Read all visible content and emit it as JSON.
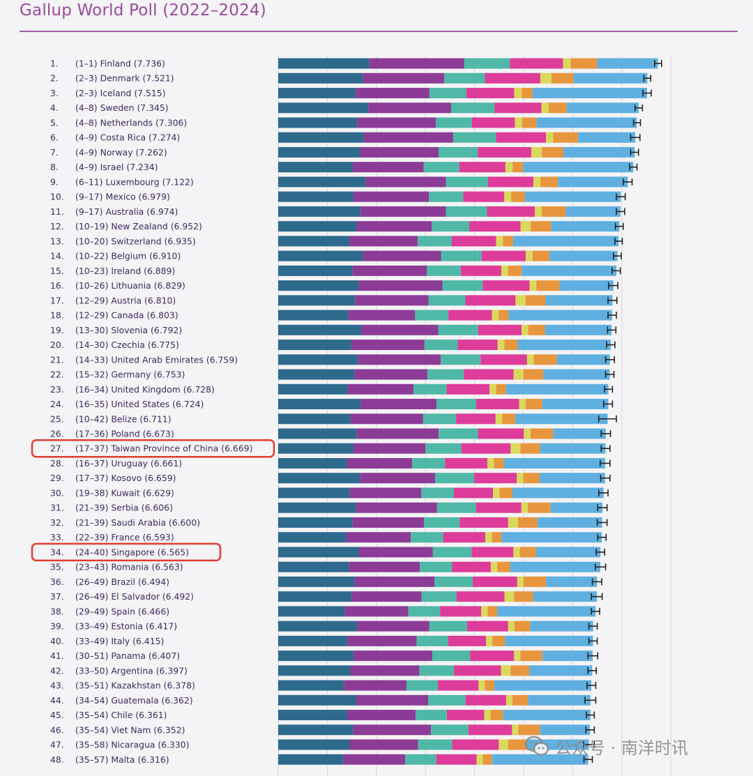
{
  "title": "Gallup World Poll (2022–2024)",
  "colors": {
    "segments": [
      "#2e6a8c",
      "#8c3c96",
      "#4fb8a6",
      "#de3c9a",
      "#d9d95c",
      "#e8963e",
      "#5fb0e0"
    ],
    "title": "#9a4a9c",
    "highlight": "#e03c30",
    "error_bar": "#222222"
  },
  "highlighted_ranks": [
    27,
    34
  ],
  "watermark": {
    "text": "公众号 · 南洋时讯",
    "icon": "wechat-icon"
  },
  "chart_data": {
    "type": "bar",
    "orientation": "horizontal",
    "stacked": true,
    "grid": true,
    "items": [
      {
        "rank": "1.",
        "range": "(1–1)",
        "country": "Finland",
        "score": "7.736",
        "value": 7.736,
        "lo": 7.67,
        "hi": 7.81
      },
      {
        "rank": "2.",
        "range": "(2–3)",
        "country": "Denmark",
        "score": "7.521",
        "value": 7.521,
        "lo": 7.45,
        "hi": 7.59
      },
      {
        "rank": "3.",
        "range": "(2–3)",
        "country": "Iceland",
        "score": "7.515",
        "value": 7.515,
        "lo": 7.43,
        "hi": 7.6
      },
      {
        "rank": "4.",
        "range": "(4–8)",
        "country": "Sweden",
        "score": "7.345",
        "value": 7.345,
        "lo": 7.27,
        "hi": 7.42
      },
      {
        "rank": "5.",
        "range": "(4–8)",
        "country": "Netherlands",
        "score": "7.306",
        "value": 7.306,
        "lo": 7.24,
        "hi": 7.38
      },
      {
        "rank": "6.",
        "range": "(4–9)",
        "country": "Costa Rica",
        "score": "7.274",
        "value": 7.274,
        "lo": 7.18,
        "hi": 7.37
      },
      {
        "rank": "7.",
        "range": "(4–9)",
        "country": "Norway",
        "score": "7.262",
        "value": 7.262,
        "lo": 7.18,
        "hi": 7.34
      },
      {
        "rank": "8.",
        "range": "(4–9)",
        "country": "Israel",
        "score": "7.234",
        "value": 7.234,
        "lo": 7.16,
        "hi": 7.31
      },
      {
        "rank": "9.",
        "range": "(6–11)",
        "country": "Luxembourg",
        "score": "7.122",
        "value": 7.122,
        "lo": 7.03,
        "hi": 7.21
      },
      {
        "rank": "10.",
        "range": "(9–17)",
        "country": "Mexico",
        "score": "6.979",
        "value": 6.979,
        "lo": 6.89,
        "hi": 7.07
      },
      {
        "rank": "11.",
        "range": "(9–17)",
        "country": "Australia",
        "score": "6.974",
        "value": 6.974,
        "lo": 6.89,
        "hi": 7.06
      },
      {
        "rank": "12.",
        "range": "(10–19)",
        "country": "New Zealand",
        "score": "6.952",
        "value": 6.952,
        "lo": 6.87,
        "hi": 7.03
      },
      {
        "rank": "13.",
        "range": "(10–20)",
        "country": "Switzerland",
        "score": "6.935",
        "value": 6.935,
        "lo": 6.86,
        "hi": 7.01
      },
      {
        "rank": "14.",
        "range": "(10–22)",
        "country": "Belgium",
        "score": "6.910",
        "value": 6.91,
        "lo": 6.83,
        "hi": 6.99
      },
      {
        "rank": "15.",
        "range": "(10–23)",
        "country": "Ireland",
        "score": "6.889",
        "value": 6.889,
        "lo": 6.8,
        "hi": 6.97
      },
      {
        "rank": "16.",
        "range": "(10–26)",
        "country": "Lithuania",
        "score": "6.829",
        "value": 6.829,
        "lo": 6.73,
        "hi": 6.92
      },
      {
        "rank": "17.",
        "range": "(12–29)",
        "country": "Austria",
        "score": "6.810",
        "value": 6.81,
        "lo": 6.72,
        "hi": 6.9
      },
      {
        "rank": "18.",
        "range": "(12–29)",
        "country": "Canada",
        "score": "6.803",
        "value": 6.803,
        "lo": 6.72,
        "hi": 6.89
      },
      {
        "rank": "19.",
        "range": "(13–30)",
        "country": "Slovenia",
        "score": "6.792",
        "value": 6.792,
        "lo": 6.71,
        "hi": 6.88
      },
      {
        "rank": "20.",
        "range": "(14–30)",
        "country": "Czechia",
        "score": "6.775",
        "value": 6.775,
        "lo": 6.69,
        "hi": 6.86
      },
      {
        "rank": "21.",
        "range": "(14–33)",
        "country": "United Arab Emirates",
        "score": "6.759",
        "value": 6.759,
        "lo": 6.67,
        "hi": 6.85
      },
      {
        "rank": "22.",
        "range": "(15–32)",
        "country": "Germany",
        "score": "6.753",
        "value": 6.753,
        "lo": 6.67,
        "hi": 6.84
      },
      {
        "rank": "23.",
        "range": "(16–34)",
        "country": "United Kingdom",
        "score": "6.728",
        "value": 6.728,
        "lo": 6.65,
        "hi": 6.81
      },
      {
        "rank": "24.",
        "range": "(16–35)",
        "country": "United States",
        "score": "6.724",
        "value": 6.724,
        "lo": 6.63,
        "hi": 6.81
      },
      {
        "rank": "25.",
        "range": "(10–42)",
        "country": "Belize",
        "score": "6.711",
        "value": 6.711,
        "lo": 6.53,
        "hi": 6.89
      },
      {
        "rank": "26.",
        "range": "(17–36)",
        "country": "Poland",
        "score": "6.673",
        "value": 6.673,
        "lo": 6.58,
        "hi": 6.77
      },
      {
        "rank": "27.",
        "range": "(17–37)",
        "country": "Taiwan Province of China",
        "score": "6.669",
        "value": 6.669,
        "lo": 6.58,
        "hi": 6.76
      },
      {
        "rank": "28.",
        "range": "(16–37)",
        "country": "Uruguay",
        "score": "6.661",
        "value": 6.661,
        "lo": 6.56,
        "hi": 6.76
      },
      {
        "rank": "29.",
        "range": "(17–37)",
        "country": "Kosovo",
        "score": "6.659",
        "value": 6.659,
        "lo": 6.57,
        "hi": 6.76
      },
      {
        "rank": "30.",
        "range": "(19–38)",
        "country": "Kuwait",
        "score": "6.629",
        "value": 6.629,
        "lo": 6.53,
        "hi": 6.72
      },
      {
        "rank": "31.",
        "range": "(21–39)",
        "country": "Serbia",
        "score": "6.606",
        "value": 6.606,
        "lo": 6.51,
        "hi": 6.7
      },
      {
        "rank": "32.",
        "range": "(21–39)",
        "country": "Saudi Arabia",
        "score": "6.600",
        "value": 6.6,
        "lo": 6.5,
        "hi": 6.7
      },
      {
        "rank": "33.",
        "range": "(22–39)",
        "country": "France",
        "score": "6.593",
        "value": 6.593,
        "lo": 6.51,
        "hi": 6.68
      },
      {
        "rank": "34.",
        "range": "(24–40)",
        "country": "Singapore",
        "score": "6.565",
        "value": 6.565,
        "lo": 6.48,
        "hi": 6.65
      },
      {
        "rank": "35.",
        "range": "(23–43)",
        "country": "Romania",
        "score": "6.563",
        "value": 6.563,
        "lo": 6.46,
        "hi": 6.67
      },
      {
        "rank": "36.",
        "range": "(26–49)",
        "country": "Brazil",
        "score": "6.494",
        "value": 6.494,
        "lo": 6.4,
        "hi": 6.59
      },
      {
        "rank": "37.",
        "range": "(26–49)",
        "country": "El Salvador",
        "score": "6.492",
        "value": 6.492,
        "lo": 6.38,
        "hi": 6.6
      },
      {
        "rank": "38.",
        "range": "(29–49)",
        "country": "Spain",
        "score": "6.466",
        "value": 6.466,
        "lo": 6.38,
        "hi": 6.55
      },
      {
        "rank": "39.",
        "range": "(33–49)",
        "country": "Estonia",
        "score": "6.417",
        "value": 6.417,
        "lo": 6.33,
        "hi": 6.5
      },
      {
        "rank": "40.",
        "range": "(33–49)",
        "country": "Italy",
        "score": "6.415",
        "value": 6.415,
        "lo": 6.33,
        "hi": 6.5
      },
      {
        "rank": "41.",
        "range": "(30–51)",
        "country": "Panama",
        "score": "6.407",
        "value": 6.407,
        "lo": 6.31,
        "hi": 6.51
      },
      {
        "rank": "42.",
        "range": "(33–50)",
        "country": "Argentina",
        "score": "6.397",
        "value": 6.397,
        "lo": 6.31,
        "hi": 6.48
      },
      {
        "rank": "43.",
        "range": "(35–51)",
        "country": "Kazakhstan",
        "score": "6.378",
        "value": 6.378,
        "lo": 6.29,
        "hi": 6.47
      },
      {
        "rank": "44.",
        "range": "(34–54)",
        "country": "Guatemala",
        "score": "6.362",
        "value": 6.362,
        "lo": 6.25,
        "hi": 6.47
      },
      {
        "rank": "45.",
        "range": "(35–54)",
        "country": "Chile",
        "score": "6.361",
        "value": 6.361,
        "lo": 6.28,
        "hi": 6.44
      },
      {
        "rank": "46.",
        "range": "(35–54)",
        "country": "Viet Nam",
        "score": "6.352",
        "value": 6.352,
        "lo": 6.27,
        "hi": 6.44
      },
      {
        "rank": "47.",
        "range": "(35–58)",
        "country": "Nicaragua",
        "score": "6.330",
        "value": 6.33,
        "lo": 6.22,
        "hi": 6.44
      },
      {
        "rank": "48.",
        "range": "(35–57)",
        "country": "Malta",
        "score": "6.316",
        "value": 6.316,
        "lo": 6.23,
        "hi": 6.4
      }
    ]
  }
}
